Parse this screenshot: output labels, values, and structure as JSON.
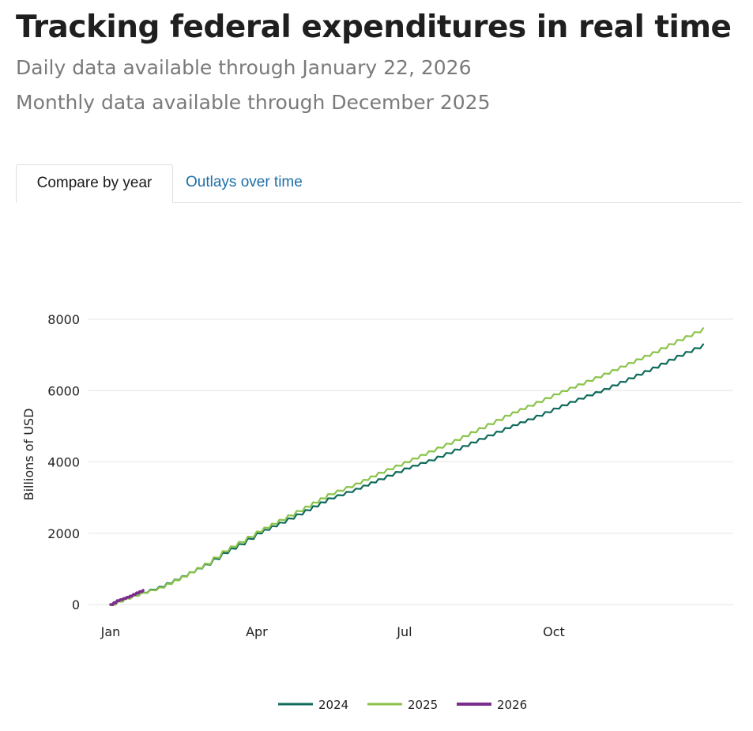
{
  "header": {
    "title": "Tracking federal expenditures in real time",
    "daily_note": "Daily data available through January 22, 2026",
    "monthly_note": "Monthly data available through December 2025"
  },
  "tabs": [
    {
      "label": "Compare by year",
      "active": true
    },
    {
      "label": "Outlays over time",
      "active": false
    }
  ],
  "colors": {
    "tab_link": "#1b6fa8",
    "grid": "#e6e6e6"
  },
  "chart_data": {
    "type": "line",
    "title": "",
    "xlabel": "",
    "ylabel": "Billions of USD",
    "x_unit": "day of year",
    "xlim": [
      1,
      366
    ],
    "ylim": [
      0,
      8000
    ],
    "y_ticks": [
      0,
      2000,
      4000,
      6000,
      8000
    ],
    "y_tick_labels": [
      "0",
      "2000",
      "4000",
      "6000",
      "8000"
    ],
    "x_ticks": [
      1,
      91,
      182,
      274
    ],
    "x_tick_labels": [
      "Jan",
      "Apr",
      "Jul",
      "Oct"
    ],
    "grid": true,
    "legend_position": "bottom-center",
    "series": [
      {
        "name": "2024",
        "color": "#0f6b5a",
        "x": [
          1,
          10,
          20,
          31,
          45,
          59,
          70,
          80,
          91,
          105,
          121,
          135,
          152,
          166,
          182,
          197,
          213,
          228,
          244,
          258,
          274,
          289,
          305,
          320,
          335,
          350,
          366
        ],
        "y": [
          0,
          180,
          340,
          500,
          800,
          1130,
          1450,
          1700,
          2000,
          2300,
          2650,
          2980,
          3250,
          3520,
          3820,
          4050,
          4350,
          4650,
          4950,
          5200,
          5500,
          5780,
          6050,
          6350,
          6650,
          6980,
          7300
        ]
      },
      {
        "name": "2025",
        "color": "#8bc34a",
        "x": [
          1,
          10,
          20,
          31,
          45,
          59,
          70,
          80,
          91,
          105,
          121,
          135,
          152,
          166,
          182,
          197,
          213,
          228,
          244,
          258,
          274,
          289,
          305,
          320,
          335,
          350,
          366
        ],
        "y": [
          0,
          170,
          330,
          480,
          790,
          1150,
          1500,
          1760,
          2050,
          2380,
          2750,
          3100,
          3400,
          3700,
          4000,
          4300,
          4620,
          4950,
          5300,
          5580,
          5900,
          6180,
          6480,
          6780,
          7080,
          7420,
          7750
        ]
      },
      {
        "name": "2026",
        "color": "#7b2d8e",
        "x": [
          1,
          5,
          9,
          13,
          17,
          21
        ],
        "y": [
          0,
          110,
          170,
          240,
          330,
          400
        ]
      }
    ]
  }
}
